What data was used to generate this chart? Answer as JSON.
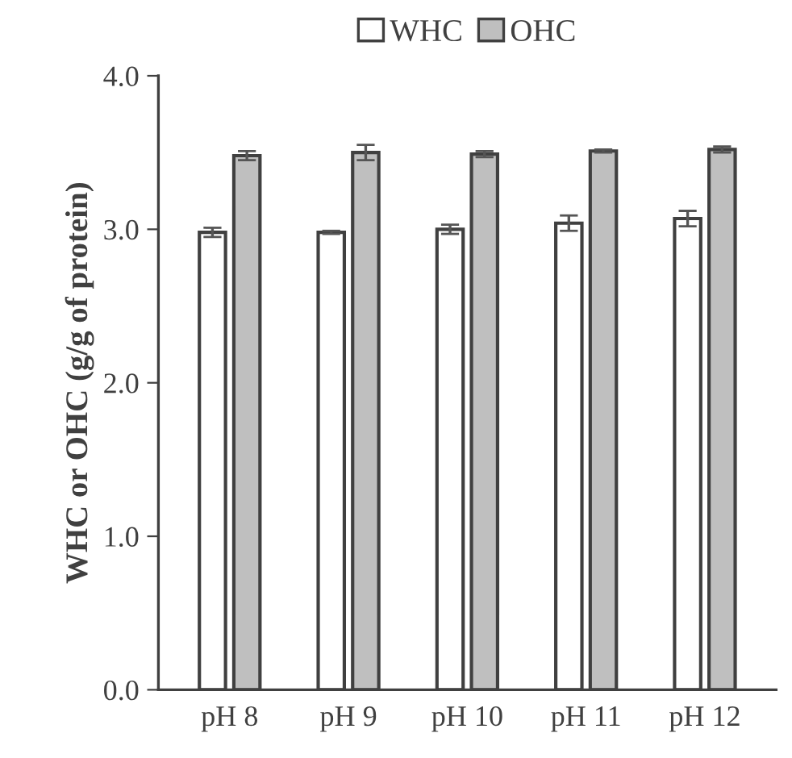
{
  "chart_data": {
    "type": "bar",
    "ylabel": "WHC or OHC (g/g of protein)",
    "categories": [
      "pH 8",
      "pH 9",
      "pH 10",
      "pH 11",
      "pH 12"
    ],
    "series": [
      {
        "name": "WHC",
        "color": "#ffffff",
        "values": [
          2.98,
          2.98,
          3.0,
          3.04,
          3.07
        ],
        "errors": [
          0.03,
          0.01,
          0.03,
          0.05,
          0.05
        ]
      },
      {
        "name": "OHC",
        "color": "#bfbfbf",
        "values": [
          3.48,
          3.5,
          3.49,
          3.51,
          3.52
        ],
        "errors": [
          0.03,
          0.05,
          0.02,
          0.01,
          0.02
        ]
      }
    ],
    "ylim": [
      0,
      4
    ],
    "yticks": [
      {
        "value": 0,
        "label": "0.0"
      },
      {
        "value": 1,
        "label": "1.0"
      },
      {
        "value": 2,
        "label": "2.0"
      },
      {
        "value": 3,
        "label": "3.0"
      },
      {
        "value": 4,
        "label": "4.0"
      }
    ],
    "legend": "top",
    "grid": false
  }
}
